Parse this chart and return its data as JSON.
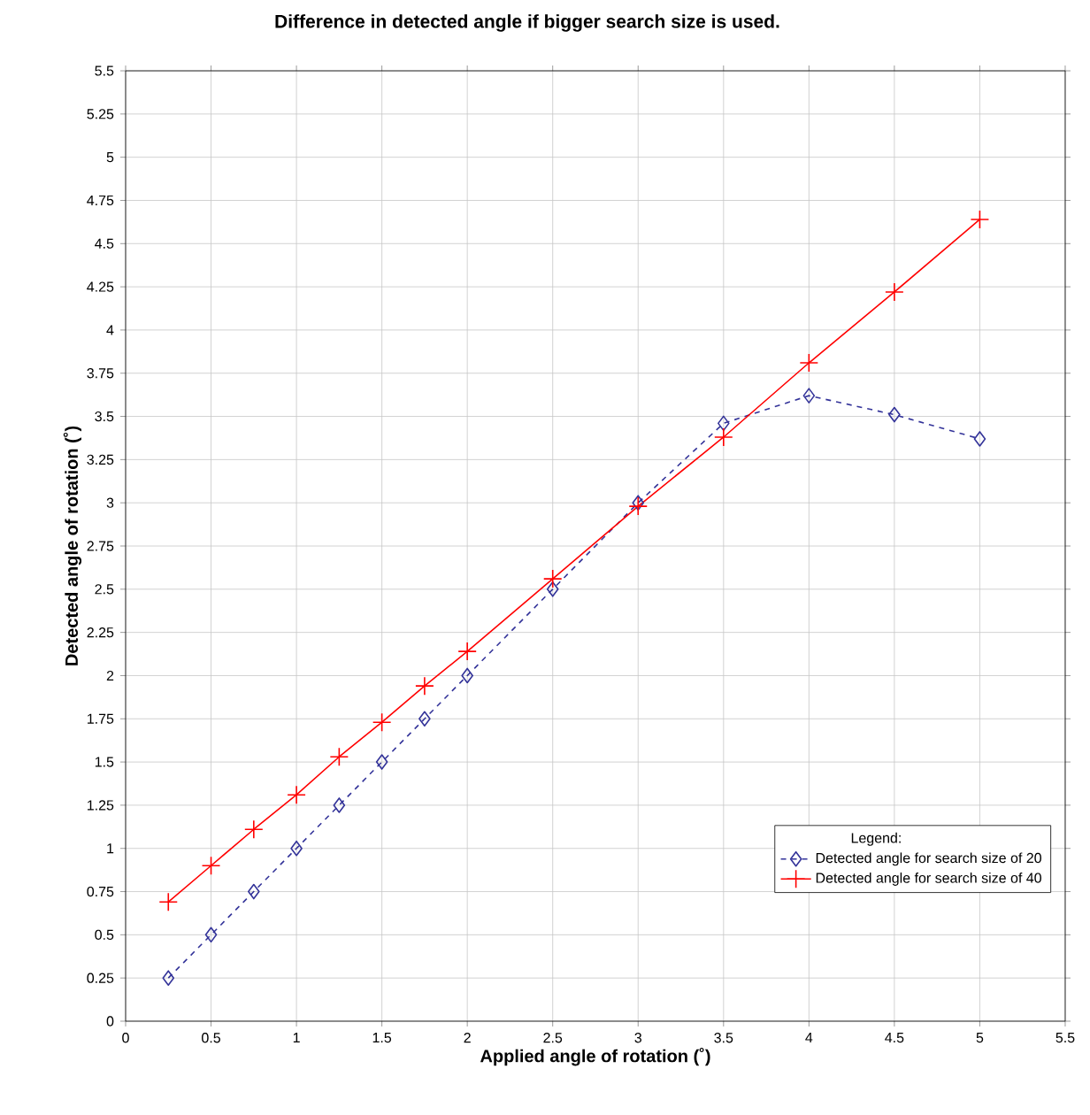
{
  "chart_data": {
    "type": "line",
    "title": "Difference in detected angle if bigger search size is used.",
    "xlabel": "Applied angle of rotation (˚)",
    "ylabel": "Detected angle of rotation (˚)",
    "legend_title": "Legend:",
    "x": [
      0.25,
      0.5,
      0.75,
      1,
      1.25,
      1.5,
      1.75,
      2,
      2.5,
      3,
      3.5,
      4,
      4.5,
      5
    ],
    "series": [
      {
        "name": "Detected angle for search size of 20",
        "color": "#333399",
        "marker": "diamond",
        "line_style": "dashed",
        "values": [
          0.25,
          0.5,
          0.75,
          1,
          1.25,
          1.5,
          1.75,
          2,
          2.5,
          3,
          3.46,
          3.62,
          3.51,
          3.37
        ]
      },
      {
        "name": "Detected angle for search size of 40",
        "color": "#ff0000",
        "marker": "cross",
        "line_style": "solid",
        "values": [
          0.69,
          0.9,
          1.11,
          1.31,
          1.53,
          1.73,
          1.94,
          2.14,
          2.56,
          2.98,
          3.38,
          3.81,
          4.22,
          4.64
        ]
      }
    ],
    "xlim": [
      0,
      5.5
    ],
    "ylim": [
      0,
      5.5
    ],
    "xticks": [
      0,
      0.5,
      1,
      1.5,
      2,
      2.5,
      3,
      3.5,
      4,
      4.5,
      5,
      5.5
    ],
    "yticks": [
      0,
      0.25,
      0.5,
      0.75,
      1,
      1.25,
      1.5,
      1.75,
      2,
      2.25,
      2.5,
      2.75,
      3,
      3.25,
      3.5,
      3.75,
      4,
      4.25,
      4.5,
      4.75,
      5,
      5.25,
      5.5
    ],
    "grid": true,
    "legend": "bottom right"
  }
}
